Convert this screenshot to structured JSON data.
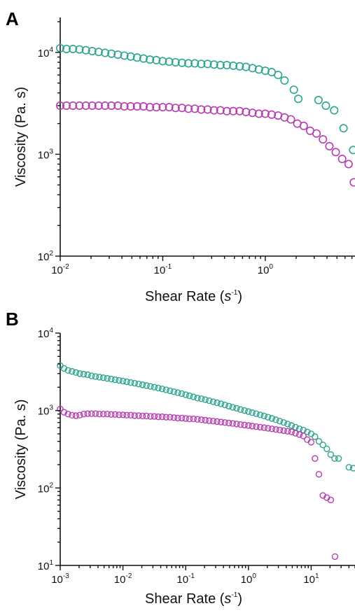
{
  "chart_data": [
    {
      "panel": "A",
      "type": "scatter",
      "log_x": true,
      "log_y": true,
      "xlim": [
        0.01,
        7.5
      ],
      "ylim": [
        100,
        22000
      ],
      "xlabel": "Shear Rate (s-1)",
      "ylabel": "Viscosity (Pa. s)",
      "x_ticks": [
        {
          "value": 0.01,
          "base": "10",
          "exp": "-2"
        },
        {
          "value": 0.1,
          "base": "10",
          "exp": "-1"
        },
        {
          "value": 1,
          "base": "10",
          "exp": "0"
        }
      ],
      "y_ticks": [
        {
          "value": 100,
          "base": "10",
          "exp": "2"
        },
        {
          "value": 1000,
          "base": "10",
          "exp": "3"
        },
        {
          "value": 10000,
          "base": "10",
          "exp": "4"
        }
      ],
      "grid": false,
      "series": [
        {
          "color": "#2aa58e",
          "points": [
            [
              0.01,
              11000
            ],
            [
              0.0115,
              10800
            ],
            [
              0.0133,
              10800
            ],
            [
              0.0154,
              10700
            ],
            [
              0.0178,
              10500
            ],
            [
              0.0205,
              10300
            ],
            [
              0.0237,
              10100
            ],
            [
              0.0274,
              9900
            ],
            [
              0.0316,
              9700
            ],
            [
              0.0365,
              9500
            ],
            [
              0.0422,
              9300
            ],
            [
              0.0487,
              9100
            ],
            [
              0.0562,
              8900
            ],
            [
              0.0649,
              8700
            ],
            [
              0.075,
              8500
            ],
            [
              0.0866,
              8400
            ],
            [
              0.1,
              8200
            ],
            [
              0.1155,
              8100
            ],
            [
              0.1334,
              8000
            ],
            [
              0.154,
              7900
            ],
            [
              0.1778,
              7800
            ],
            [
              0.2054,
              7800
            ],
            [
              0.2371,
              7700
            ],
            [
              0.2738,
              7700
            ],
            [
              0.3162,
              7600
            ],
            [
              0.3652,
              7500
            ],
            [
              0.4217,
              7500
            ],
            [
              0.487,
              7400
            ],
            [
              0.5623,
              7300
            ],
            [
              0.6494,
              7200
            ],
            [
              0.7499,
              7000
            ],
            [
              0.866,
              6800
            ],
            [
              1.0,
              6600
            ],
            [
              1.155,
              6400
            ],
            [
              1.334,
              6000
            ],
            [
              1.54,
              5300
            ],
            [
              1.9,
              4300
            ],
            [
              2.1,
              3500
            ],
            [
              3.3,
              3400
            ],
            [
              3.9,
              3000
            ],
            [
              4.7,
              2700
            ],
            [
              5.8,
              1800
            ],
            [
              7.2,
              1100
            ]
          ]
        },
        {
          "color": "#b73bb1",
          "points": [
            [
              0.01,
              3000
            ],
            [
              0.0115,
              3000
            ],
            [
              0.0133,
              3000
            ],
            [
              0.0154,
              3000
            ],
            [
              0.0178,
              3000
            ],
            [
              0.0205,
              3000
            ],
            [
              0.0237,
              3000
            ],
            [
              0.0274,
              3000
            ],
            [
              0.0316,
              3000
            ],
            [
              0.0365,
              3000
            ],
            [
              0.0422,
              2950
            ],
            [
              0.0487,
              2950
            ],
            [
              0.0562,
              2950
            ],
            [
              0.0649,
              2950
            ],
            [
              0.075,
              2900
            ],
            [
              0.0866,
              2900
            ],
            [
              0.1,
              2900
            ],
            [
              0.1155,
              2900
            ],
            [
              0.1334,
              2850
            ],
            [
              0.154,
              2850
            ],
            [
              0.1778,
              2800
            ],
            [
              0.2054,
              2800
            ],
            [
              0.2371,
              2750
            ],
            [
              0.2738,
              2750
            ],
            [
              0.3162,
              2700
            ],
            [
              0.3652,
              2700
            ],
            [
              0.4217,
              2650
            ],
            [
              0.487,
              2650
            ],
            [
              0.5623,
              2650
            ],
            [
              0.6494,
              2600
            ],
            [
              0.7499,
              2550
            ],
            [
              0.866,
              2500
            ],
            [
              1.0,
              2500
            ],
            [
              1.155,
              2450
            ],
            [
              1.334,
              2400
            ],
            [
              1.54,
              2300
            ],
            [
              1.778,
              2200
            ],
            [
              2.054,
              2000
            ],
            [
              2.371,
              1900
            ],
            [
              2.738,
              1700
            ],
            [
              3.162,
              1600
            ],
            [
              3.652,
              1400
            ],
            [
              4.217,
              1200
            ],
            [
              4.87,
              1050
            ],
            [
              5.623,
              900
            ],
            [
              6.494,
              800
            ],
            [
              7.3,
              530
            ]
          ]
        }
      ]
    },
    {
      "panel": "B",
      "type": "scatter",
      "log_x": true,
      "log_y": true,
      "xlim": [
        0.001,
        50
      ],
      "ylim": [
        10,
        10000
      ],
      "xlabel": "Shear Rate (s-1)",
      "ylabel": "Viscosity (Pa. s)",
      "x_ticks": [
        {
          "value": 0.001,
          "base": "10",
          "exp": "-3"
        },
        {
          "value": 0.01,
          "base": "10",
          "exp": "-2"
        },
        {
          "value": 0.1,
          "base": "10",
          "exp": "-1"
        },
        {
          "value": 1,
          "base": "10",
          "exp": "0"
        },
        {
          "value": 10,
          "base": "10",
          "exp": "1"
        }
      ],
      "y_ticks": [
        {
          "value": 10,
          "base": "10",
          "exp": "1"
        },
        {
          "value": 100,
          "base": "10",
          "exp": "2"
        },
        {
          "value": 1000,
          "base": "10",
          "exp": "3"
        },
        {
          "value": 10000,
          "base": "10",
          "exp": "4"
        }
      ],
      "grid": false,
      "series": [
        {
          "color": "#2aa58e",
          "points": [
            [
              0.001,
              3800
            ],
            [
              0.00115,
              3500
            ],
            [
              0.00133,
              3300
            ],
            [
              0.00154,
              3200
            ],
            [
              0.00178,
              3100
            ],
            [
              0.00205,
              3000
            ],
            [
              0.00237,
              2950
            ],
            [
              0.00274,
              2900
            ],
            [
              0.00316,
              2800
            ],
            [
              0.00365,
              2750
            ],
            [
              0.00422,
              2700
            ],
            [
              0.00487,
              2650
            ],
            [
              0.00562,
              2600
            ],
            [
              0.00649,
              2550
            ],
            [
              0.0075,
              2500
            ],
            [
              0.00866,
              2450
            ],
            [
              0.01,
              2400
            ],
            [
              0.0115,
              2350
            ],
            [
              0.0133,
              2300
            ],
            [
              0.0154,
              2250
            ],
            [
              0.0178,
              2200
            ],
            [
              0.0205,
              2150
            ],
            [
              0.0237,
              2100
            ],
            [
              0.0274,
              2050
            ],
            [
              0.0316,
              2000
            ],
            [
              0.0365,
              1950
            ],
            [
              0.0422,
              1900
            ],
            [
              0.0487,
              1850
            ],
            [
              0.0562,
              1800
            ],
            [
              0.0649,
              1750
            ],
            [
              0.075,
              1700
            ],
            [
              0.0866,
              1650
            ],
            [
              0.1,
              1600
            ],
            [
              0.115,
              1550
            ],
            [
              0.133,
              1500
            ],
            [
              0.154,
              1450
            ],
            [
              0.178,
              1420
            ],
            [
              0.205,
              1380
            ],
            [
              0.237,
              1340
            ],
            [
              0.274,
              1300
            ],
            [
              0.316,
              1260
            ],
            [
              0.365,
              1220
            ],
            [
              0.422,
              1180
            ],
            [
              0.487,
              1140
            ],
            [
              0.562,
              1100
            ],
            [
              0.649,
              1070
            ],
            [
              0.75,
              1030
            ],
            [
              0.866,
              1000
            ],
            [
              1.0,
              970
            ],
            [
              1.15,
              940
            ],
            [
              1.33,
              910
            ],
            [
              1.54,
              880
            ],
            [
              1.78,
              850
            ],
            [
              2.05,
              820
            ],
            [
              2.37,
              790
            ],
            [
              2.74,
              760
            ],
            [
              3.16,
              730
            ],
            [
              3.65,
              700
            ],
            [
              4.22,
              670
            ],
            [
              4.87,
              640
            ],
            [
              5.62,
              610
            ],
            [
              6.49,
              580
            ],
            [
              7.5,
              560
            ],
            [
              8.66,
              530
            ],
            [
              10.0,
              500
            ],
            [
              11.5,
              460
            ],
            [
              13.3,
              400
            ],
            [
              15.4,
              360
            ],
            [
              17.8,
              320
            ],
            [
              20.5,
              270
            ],
            [
              23.7,
              240
            ],
            [
              27.4,
              240
            ],
            [
              40.0,
              185
            ],
            [
              47.0,
              180
            ]
          ]
        },
        {
          "color": "#b73bb1",
          "points": [
            [
              0.001,
              1050
            ],
            [
              0.00115,
              950
            ],
            [
              0.00133,
              900
            ],
            [
              0.00154,
              870
            ],
            [
              0.00178,
              860
            ],
            [
              0.00205,
              870
            ],
            [
              0.00237,
              900
            ],
            [
              0.00274,
              910
            ],
            [
              0.00316,
              910
            ],
            [
              0.00365,
              910
            ],
            [
              0.00422,
              900
            ],
            [
              0.00487,
              900
            ],
            [
              0.00562,
              900
            ],
            [
              0.00649,
              890
            ],
            [
              0.0075,
              890
            ],
            [
              0.00866,
              880
            ],
            [
              0.01,
              880
            ],
            [
              0.0115,
              870
            ],
            [
              0.0133,
              870
            ],
            [
              0.0154,
              860
            ],
            [
              0.0178,
              860
            ],
            [
              0.0205,
              850
            ],
            [
              0.0237,
              850
            ],
            [
              0.0274,
              840
            ],
            [
              0.0316,
              840
            ],
            [
              0.0365,
              830
            ],
            [
              0.0422,
              830
            ],
            [
              0.0487,
              820
            ],
            [
              0.0562,
              820
            ],
            [
              0.0649,
              810
            ],
            [
              0.075,
              800
            ],
            [
              0.0866,
              800
            ],
            [
              0.1,
              790
            ],
            [
              0.115,
              780
            ],
            [
              0.133,
              780
            ],
            [
              0.154,
              770
            ],
            [
              0.178,
              760
            ],
            [
              0.205,
              750
            ],
            [
              0.237,
              740
            ],
            [
              0.274,
              730
            ],
            [
              0.316,
              720
            ],
            [
              0.365,
              710
            ],
            [
              0.422,
              700
            ],
            [
              0.487,
              690
            ],
            [
              0.562,
              680
            ],
            [
              0.649,
              670
            ],
            [
              0.75,
              660
            ],
            [
              0.866,
              650
            ],
            [
              1.0,
              640
            ],
            [
              1.15,
              630
            ],
            [
              1.33,
              620
            ],
            [
              1.54,
              610
            ],
            [
              1.78,
              600
            ],
            [
              2.05,
              590
            ],
            [
              2.37,
              580
            ],
            [
              2.74,
              570
            ],
            [
              3.16,
              560
            ],
            [
              3.65,
              550
            ],
            [
              4.22,
              540
            ],
            [
              4.87,
              530
            ],
            [
              5.62,
              510
            ],
            [
              6.49,
              490
            ],
            [
              7.5,
              470
            ],
            [
              8.66,
              420
            ],
            [
              10.0,
              390
            ],
            [
              11.5,
              240
            ],
            [
              13.3,
              150
            ],
            [
              15.4,
              80
            ],
            [
              17.8,
              75
            ],
            [
              20.5,
              70
            ],
            [
              24.0,
              13
            ]
          ]
        }
      ]
    }
  ]
}
